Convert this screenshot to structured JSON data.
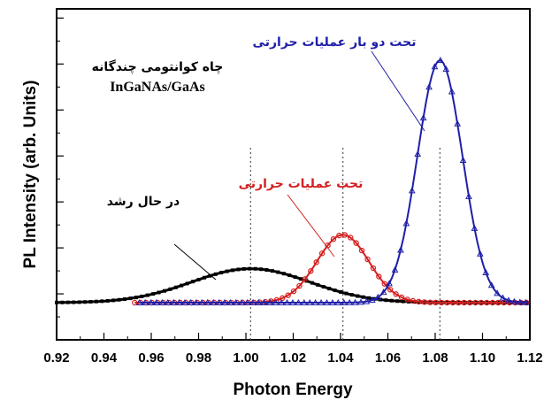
{
  "chart_data": {
    "type": "line",
    "xlabel": "Photon Energy",
    "ylabel": "PL Intensity (arb. Units)",
    "xlim": [
      0.92,
      1.12
    ],
    "x_ticks": [
      "0.92",
      "0.94",
      "0.96",
      "0.98",
      "1.00",
      "1.02",
      "1.04",
      "1.06",
      "1.08",
      "1.10",
      "1.12"
    ],
    "ylim": [
      0,
      1.08
    ],
    "grid": false,
    "legend": "none",
    "peak_markers": [
      1.002,
      1.041,
      1.082
    ],
    "series": [
      {
        "name": "در حال رشد",
        "color": "#000000",
        "marker": "square",
        "x_range": [
          0.92,
          1.12
        ],
        "peak_x": 1.002,
        "peak_y": 0.14,
        "width": 0.025,
        "baseline": 0.0
      },
      {
        "name": "تحت عملیات حرارتی",
        "color": "#d42020",
        "marker": "circle",
        "x_range": [
          0.953,
          1.12
        ],
        "peak_x": 1.041,
        "peak_y": 0.28,
        "width": 0.011,
        "baseline": 0.0
      },
      {
        "name": "تحت دو بار عملیات حرارتی",
        "color": "#1f1fa8",
        "marker": "triangle",
        "x_range": [
          0.955,
          1.12
        ],
        "peak_x": 1.082,
        "peak_y": 1.0,
        "width": 0.0095,
        "baseline": 0.0
      }
    ],
    "annotations": {
      "title_line1": "چاه کوانتومی چندگانه",
      "title_line2": "InGaNAs/GaAs",
      "as_grown": "در حال رشد",
      "annealed": "تحت عملیات حرارتی",
      "twice_annealed": "تحت دو بار عملیات حرارتی"
    }
  }
}
